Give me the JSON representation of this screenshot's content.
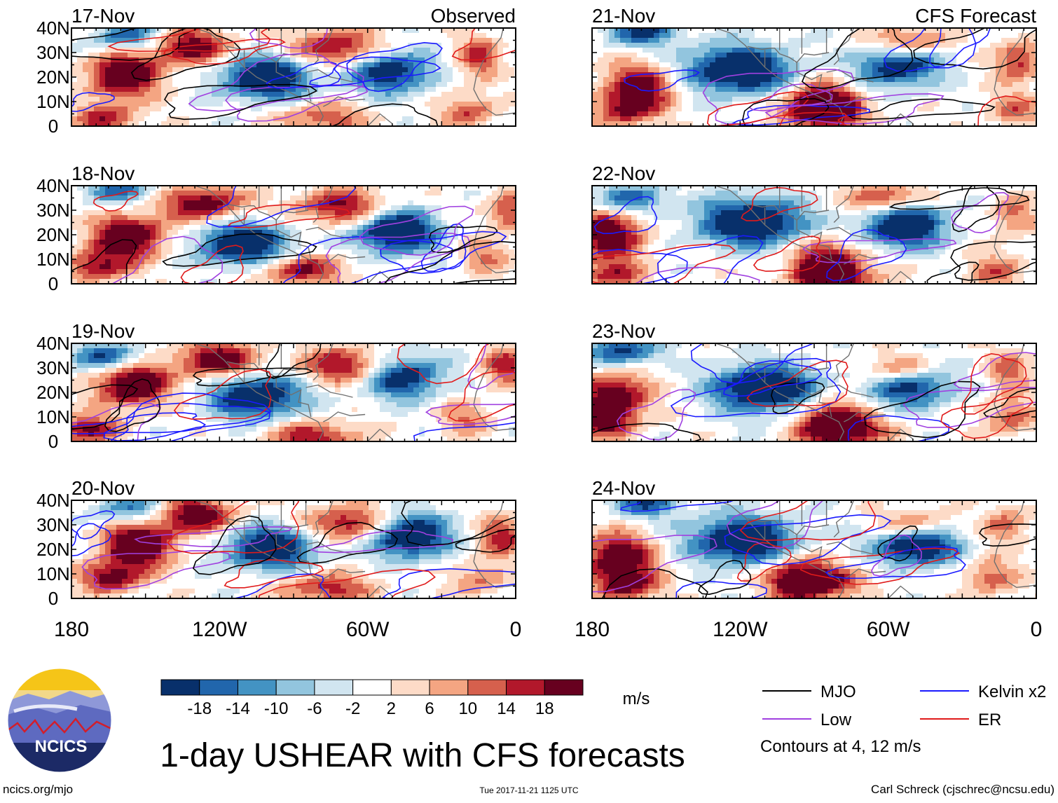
{
  "title": "1-day USHEAR with CFS forecasts",
  "footer": {
    "url": "ncics.org/mjo",
    "timestamp": "Tue 2017-11-21 1125 UTC",
    "credit": "Carl Schreck (cjschrec@ncsu.edu)"
  },
  "logo": {
    "text": "NCICS"
  },
  "legend": {
    "contours_note": "Contours at 4, 12 m/s",
    "items": [
      {
        "label": "MJO",
        "color": "#000000"
      },
      {
        "label": "Kelvin x2",
        "color": "#1a1aff"
      },
      {
        "label": "Low",
        "color": "#a040e0"
      },
      {
        "label": "ER",
        "color": "#e01a1a"
      }
    ]
  },
  "colorbar": {
    "units": "m/s",
    "ticks": [
      "-18",
      "-14",
      "-10",
      "-6",
      "-2",
      "2",
      "6",
      "10",
      "14",
      "18"
    ],
    "colors": [
      "#08306b",
      "#2166ac",
      "#4393c3",
      "#92c5de",
      "#d1e5f0",
      "#ffffff",
      "#fddbc7",
      "#f4a582",
      "#d6604d",
      "#b2182b",
      "#67001f"
    ]
  },
  "chart_data": {
    "type": "heatmap",
    "variable": "USHEAR",
    "units": "m/s",
    "x_ticks": [
      "180",
      "120W",
      "60W",
      "0"
    ],
    "x_range": [
      -180,
      0
    ],
    "y_ticks": [
      "0",
      "10N",
      "20N",
      "30N",
      "40N"
    ],
    "y_range": [
      0,
      40
    ],
    "columns": [
      {
        "header": "Observed",
        "panels": [
          "17-Nov",
          "18-Nov",
          "19-Nov",
          "20-Nov"
        ]
      },
      {
        "header": "CFS Forecast",
        "panels": [
          "21-Nov",
          "22-Nov",
          "23-Nov",
          "24-Nov"
        ]
      }
    ],
    "contour_levels": [
      4,
      12
    ]
  }
}
